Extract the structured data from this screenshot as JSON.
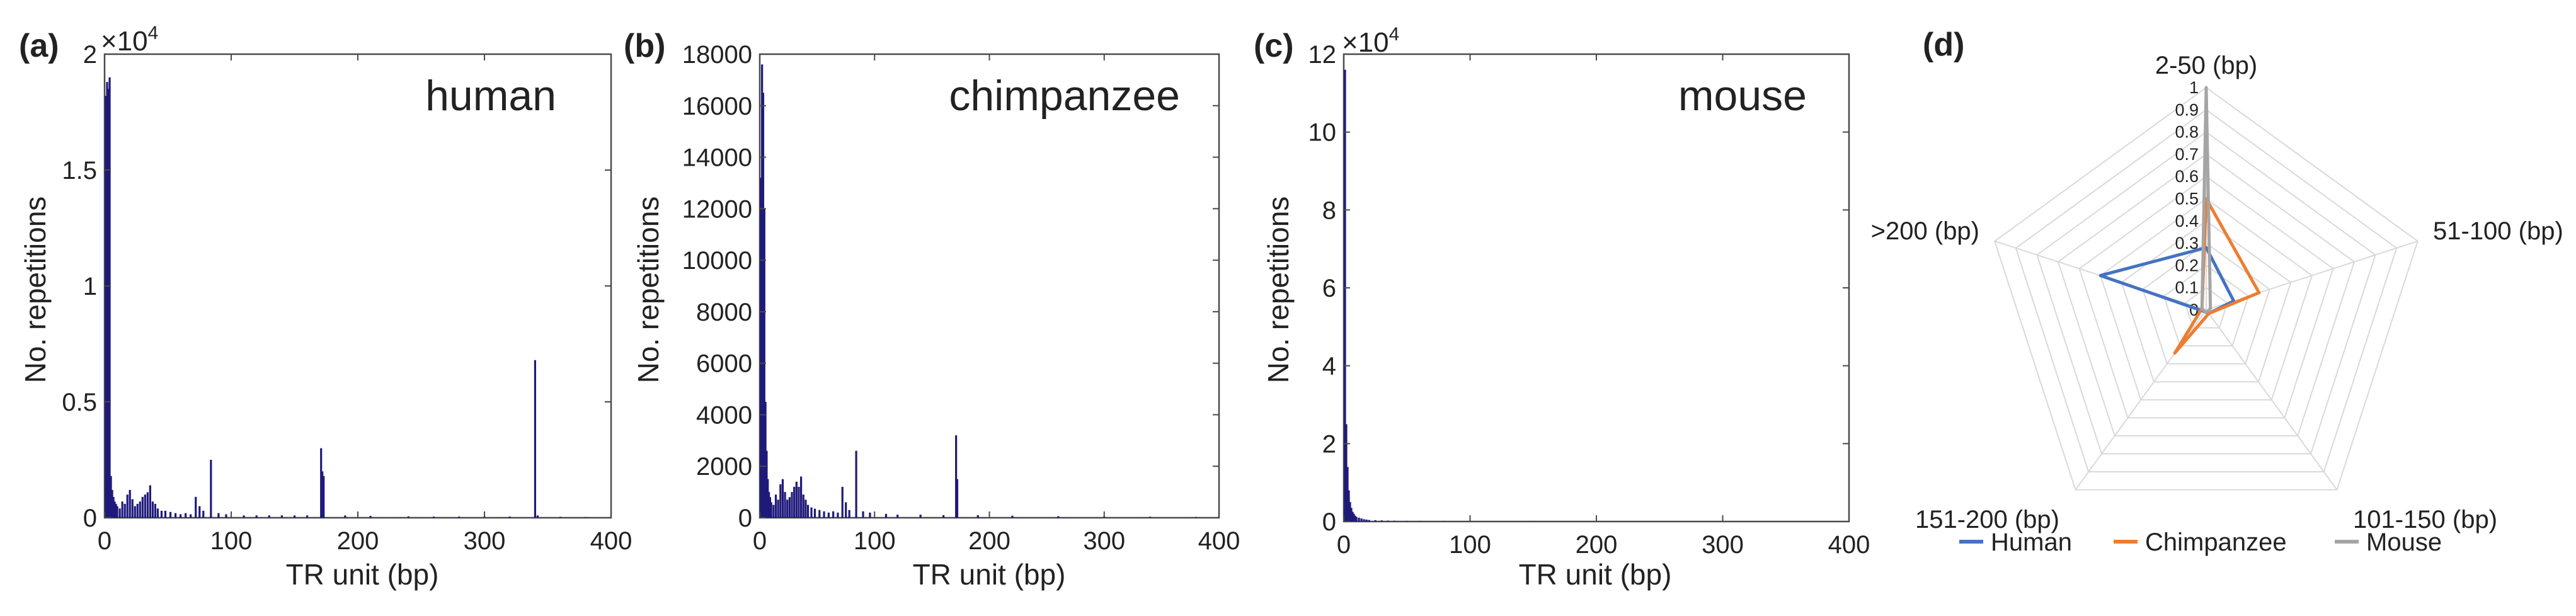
{
  "figure": {
    "colors": {
      "bar": "#1f1a7a",
      "axis": "#4a4a4a",
      "grid": "#d9d9d9",
      "human": "#4472c4",
      "chimpanzee": "#ed7d31",
      "mouse": "#a5a5a5"
    }
  },
  "chart_data": [
    {
      "type": "bar",
      "panel_label": "(a)",
      "species": "human",
      "xlabel": "TR unit (bp)",
      "ylabel": "No. repetitions",
      "xlim": [
        0,
        400
      ],
      "ylim": [
        0,
        20000
      ],
      "x_ticks": [
        0,
        100,
        200,
        300,
        400
      ],
      "y_ticks": [
        0,
        5000,
        10000,
        15000,
        20000
      ],
      "y_tick_labels": [
        "0",
        "0.5",
        "1",
        "1.5",
        "2"
      ],
      "y_multiplier": "×10",
      "y_exponent": "4",
      "x": [
        1,
        2,
        3,
        4,
        5,
        6,
        7,
        8,
        9,
        10,
        12,
        14,
        16,
        18,
        20,
        22,
        24,
        26,
        28,
        30,
        32,
        34,
        36,
        38,
        40,
        42,
        45,
        48,
        52,
        56,
        60,
        64,
        68,
        72,
        75,
        78,
        84,
        90,
        96,
        110,
        120,
        130,
        140,
        150,
        160,
        171,
        172,
        173,
        190,
        210,
        240,
        260,
        280,
        300,
        320,
        340,
        342,
        360,
        380
      ],
      "values": [
        18200,
        18800,
        18500,
        19000,
        1800,
        1200,
        900,
        700,
        600,
        500,
        400,
        700,
        600,
        1000,
        1200,
        800,
        500,
        600,
        700,
        900,
        1000,
        1100,
        1400,
        700,
        600,
        400,
        300,
        300,
        250,
        200,
        150,
        200,
        150,
        900,
        500,
        300,
        2500,
        200,
        150,
        100,
        100,
        100,
        100,
        100,
        100,
        3000,
        2000,
        1800,
        100,
        80,
        60,
        50,
        50,
        50,
        50,
        6800,
        100,
        40,
        30
      ]
    },
    {
      "type": "bar",
      "panel_label": "(b)",
      "species": "chimpanzee",
      "xlabel": "TR unit (bp)",
      "ylabel": "No. repetitions",
      "xlim": [
        0,
        400
      ],
      "ylim": [
        0,
        18000
      ],
      "x_ticks": [
        0,
        100,
        200,
        300,
        400
      ],
      "y_ticks": [
        0,
        2000,
        4000,
        6000,
        8000,
        10000,
        12000,
        14000,
        16000,
        18000
      ],
      "y_tick_labels": [
        "0",
        "2000",
        "4000",
        "6000",
        "8000",
        "10000",
        "12000",
        "14000",
        "16000",
        "18000"
      ],
      "x": [
        1,
        2,
        3,
        4,
        5,
        6,
        7,
        8,
        9,
        10,
        12,
        14,
        16,
        18,
        20,
        22,
        24,
        26,
        28,
        30,
        32,
        34,
        36,
        38,
        40,
        42,
        45,
        48,
        52,
        56,
        60,
        64,
        68,
        72,
        75,
        78,
        84,
        90,
        96,
        110,
        120,
        140,
        160,
        171,
        172,
        190,
        220,
        260,
        300,
        340,
        380
      ],
      "values": [
        13200,
        17600,
        16500,
        12000,
        4500,
        2600,
        1500,
        1000,
        800,
        600,
        500,
        900,
        700,
        1300,
        1500,
        1000,
        700,
        800,
        1000,
        1200,
        1400,
        1200,
        1600,
        900,
        700,
        500,
        400,
        350,
        300,
        250,
        200,
        250,
        200,
        1200,
        600,
        300,
        2600,
        250,
        200,
        150,
        120,
        120,
        100,
        3200,
        1500,
        100,
        80,
        60,
        50,
        40,
        30
      ]
    },
    {
      "type": "bar",
      "panel_label": "(c)",
      "species": "mouse",
      "xlabel": "TR unit (bp)",
      "ylabel": "No. repetitions",
      "xlim": [
        0,
        400
      ],
      "ylim": [
        0,
        120000
      ],
      "x_ticks": [
        0,
        100,
        200,
        300,
        400
      ],
      "y_ticks": [
        0,
        20000,
        40000,
        60000,
        80000,
        100000,
        120000
      ],
      "y_tick_labels": [
        "0",
        "2",
        "4",
        "6",
        "8",
        "10",
        "12"
      ],
      "y_multiplier": "×10",
      "y_exponent": "4",
      "x": [
        1,
        2,
        3,
        4,
        5,
        6,
        7,
        8,
        9,
        10,
        12,
        14,
        16,
        18,
        20,
        25,
        30,
        35,
        40,
        50,
        60,
        80,
        100,
        150,
        200,
        300
      ],
      "values": [
        116000,
        25000,
        14000,
        8000,
        5000,
        3500,
        2500,
        2000,
        1500,
        1200,
        1000,
        800,
        600,
        500,
        400,
        350,
        300,
        250,
        200,
        150,
        100,
        80,
        60,
        40,
        30,
        20
      ]
    },
    {
      "type": "radar",
      "panel_label": "(d)",
      "axes": [
        "2-50 (bp)",
        "51-100 (bp)",
        "101-150 (bp)",
        "151-200 (bp)",
        ">200 (bp)"
      ],
      "rmin": 0,
      "rmax": 1,
      "r_ticks": [
        0,
        0.1,
        0.2,
        0.3,
        0.4,
        0.5,
        0.6,
        0.7,
        0.8,
        0.9,
        1
      ],
      "r_tick_labels": [
        "0",
        "0.1",
        "0.2",
        "0.3",
        "0.4",
        "0.5",
        "0.6",
        "0.7",
        "0.8",
        "0.9",
        "1"
      ],
      "series": [
        {
          "name": "Human",
          "values": [
            0.28,
            0.13,
            0.02,
            0.01,
            0.5
          ]
        },
        {
          "name": "Chimpanzee",
          "values": [
            0.5,
            0.25,
            0.02,
            0.24,
            0.02
          ]
        },
        {
          "name": "Mouse",
          "values": [
            1.0,
            0.02,
            0.01,
            0.01,
            0.02
          ]
        }
      ],
      "legend": "bottom"
    }
  ]
}
